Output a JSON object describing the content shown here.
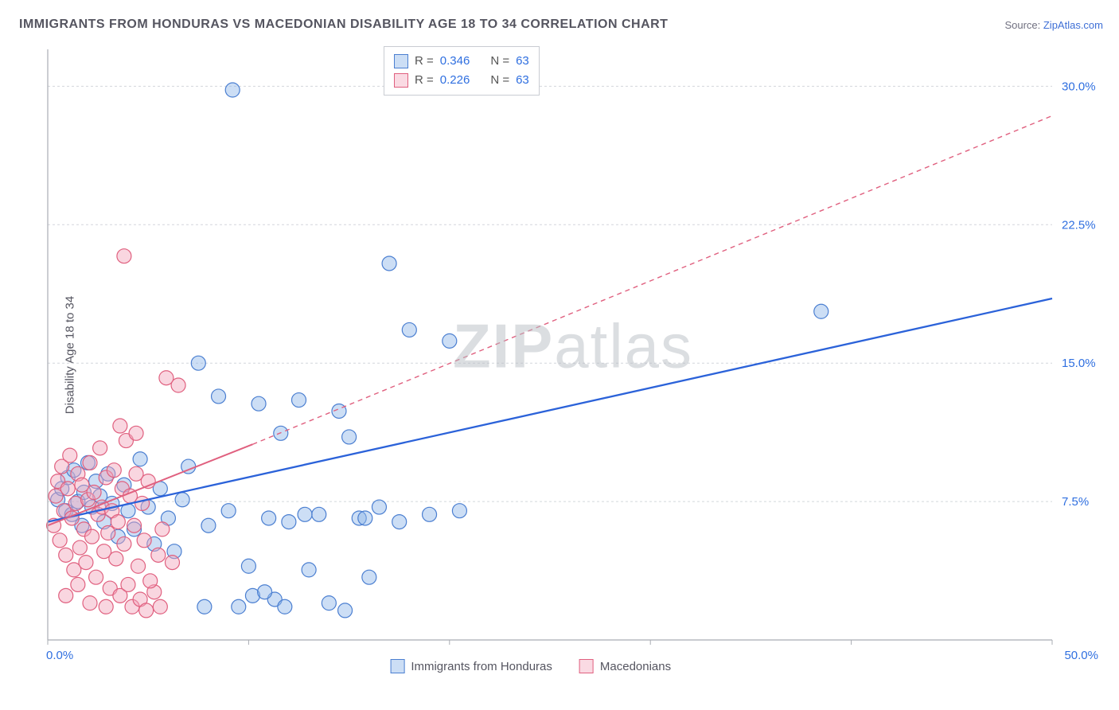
{
  "title": "IMMIGRANTS FROM HONDURAS VS MACEDONIAN DISABILITY AGE 18 TO 34 CORRELATION CHART",
  "source_prefix": "Source: ",
  "source_link": "ZipAtlas.com",
  "ylabel": "Disability Age 18 to 34",
  "watermark_bold": "ZIP",
  "watermark_rest": "atlas",
  "chart": {
    "type": "scatter",
    "background_color": "#ffffff",
    "grid_color": "#d3d6db",
    "axis_color": "#a9acb3",
    "tick_color": "#2f6fe0",
    "tick_fontsize": 15,
    "xlim": [
      0,
      50
    ],
    "ylim": [
      0,
      32
    ],
    "xticks": [
      0,
      50
    ],
    "xtick_labels": [
      "0.0%",
      "50.0%"
    ],
    "yticks": [
      7.5,
      15.0,
      22.5,
      30.0
    ],
    "ytick_labels": [
      "7.5%",
      "15.0%",
      "22.5%",
      "30.0%"
    ],
    "x_minor_tick_step": 10,
    "marker_radius": 9,
    "marker_opacity": 0.45,
    "series": [
      {
        "name": "Immigrants from Honduras",
        "color_fill": "#8eb6e8",
        "color_stroke": "#4b7fd1",
        "R": 0.346,
        "N": 63,
        "trend": {
          "x1": 0,
          "y1": 6.4,
          "x2": 50,
          "y2": 18.5,
          "dashed_from_x": 50,
          "stroke": "#2b62d9",
          "width": 2.3
        },
        "points": [
          [
            0.5,
            7.6
          ],
          [
            0.7,
            8.2
          ],
          [
            0.9,
            7.0
          ],
          [
            1.0,
            8.8
          ],
          [
            1.2,
            6.8
          ],
          [
            1.3,
            9.2
          ],
          [
            1.5,
            7.5
          ],
          [
            1.7,
            6.2
          ],
          [
            1.8,
            8.0
          ],
          [
            2.0,
            9.6
          ],
          [
            2.2,
            7.2
          ],
          [
            2.4,
            8.6
          ],
          [
            2.6,
            7.8
          ],
          [
            2.8,
            6.4
          ],
          [
            3.0,
            9.0
          ],
          [
            3.2,
            7.4
          ],
          [
            3.5,
            5.6
          ],
          [
            3.8,
            8.4
          ],
          [
            4.0,
            7.0
          ],
          [
            4.3,
            6.0
          ],
          [
            4.6,
            9.8
          ],
          [
            5.0,
            7.2
          ],
          [
            5.3,
            5.2
          ],
          [
            5.6,
            8.2
          ],
          [
            6.0,
            6.6
          ],
          [
            6.3,
            4.8
          ],
          [
            6.7,
            7.6
          ],
          [
            7.0,
            9.4
          ],
          [
            7.5,
            15.0
          ],
          [
            8.0,
            6.2
          ],
          [
            8.5,
            13.2
          ],
          [
            9.0,
            7.0
          ],
          [
            9.2,
            29.8
          ],
          [
            9.5,
            1.8
          ],
          [
            10.0,
            4.0
          ],
          [
            10.2,
            2.4
          ],
          [
            10.5,
            12.8
          ],
          [
            11.0,
            6.6
          ],
          [
            11.3,
            2.2
          ],
          [
            11.6,
            11.2
          ],
          [
            12.0,
            6.4
          ],
          [
            12.5,
            13.0
          ],
          [
            13.0,
            3.8
          ],
          [
            13.5,
            6.8
          ],
          [
            14.0,
            2.0
          ],
          [
            14.5,
            12.4
          ],
          [
            15.0,
            11.0
          ],
          [
            15.5,
            6.6
          ],
          [
            16.0,
            3.4
          ],
          [
            16.5,
            7.2
          ],
          [
            17.0,
            20.4
          ],
          [
            17.5,
            6.4
          ],
          [
            18.0,
            16.8
          ],
          [
            14.8,
            1.6
          ],
          [
            19.0,
            6.8
          ],
          [
            20.0,
            16.2
          ],
          [
            20.5,
            7.0
          ],
          [
            38.5,
            17.8
          ],
          [
            10.8,
            2.6
          ],
          [
            7.8,
            1.8
          ],
          [
            11.8,
            1.8
          ],
          [
            12.8,
            6.8
          ],
          [
            15.8,
            6.6
          ]
        ]
      },
      {
        "name": "Macedonians",
        "color_fill": "#f2a5ba",
        "color_stroke": "#e0607f",
        "R": 0.226,
        "N": 63,
        "trend": {
          "x1": 0,
          "y1": 6.2,
          "x2": 10.2,
          "y2": 10.6,
          "dashed_to": [
            50,
            28.4
          ],
          "stroke": "#e0607f",
          "width": 2.0
        },
        "points": [
          [
            0.3,
            6.2
          ],
          [
            0.4,
            7.8
          ],
          [
            0.5,
            8.6
          ],
          [
            0.6,
            5.4
          ],
          [
            0.7,
            9.4
          ],
          [
            0.8,
            7.0
          ],
          [
            0.9,
            4.6
          ],
          [
            1.0,
            8.2
          ],
          [
            1.1,
            10.0
          ],
          [
            1.2,
            6.6
          ],
          [
            1.3,
            3.8
          ],
          [
            1.4,
            7.4
          ],
          [
            1.5,
            9.0
          ],
          [
            1.6,
            5.0
          ],
          [
            1.7,
            8.4
          ],
          [
            1.8,
            6.0
          ],
          [
            1.9,
            4.2
          ],
          [
            2.0,
            7.6
          ],
          [
            2.1,
            9.6
          ],
          [
            2.2,
            5.6
          ],
          [
            2.3,
            8.0
          ],
          [
            2.4,
            3.4
          ],
          [
            2.5,
            6.8
          ],
          [
            2.6,
            10.4
          ],
          [
            2.7,
            7.2
          ],
          [
            2.8,
            4.8
          ],
          [
            2.9,
            8.8
          ],
          [
            3.0,
            5.8
          ],
          [
            3.1,
            2.8
          ],
          [
            3.2,
            7.0
          ],
          [
            3.3,
            9.2
          ],
          [
            3.4,
            4.4
          ],
          [
            3.5,
            6.4
          ],
          [
            3.6,
            2.4
          ],
          [
            3.7,
            8.2
          ],
          [
            3.8,
            5.2
          ],
          [
            3.9,
            10.8
          ],
          [
            4.0,
            3.0
          ],
          [
            4.1,
            7.8
          ],
          [
            4.2,
            1.8
          ],
          [
            4.3,
            6.2
          ],
          [
            4.4,
            9.0
          ],
          [
            4.5,
            4.0
          ],
          [
            4.6,
            2.2
          ],
          [
            4.7,
            7.4
          ],
          [
            4.8,
            5.4
          ],
          [
            4.9,
            1.6
          ],
          [
            5.0,
            8.6
          ],
          [
            3.8,
            20.8
          ],
          [
            5.3,
            2.6
          ],
          [
            5.5,
            4.6
          ],
          [
            5.7,
            6.0
          ],
          [
            5.9,
            14.2
          ],
          [
            6.2,
            4.2
          ],
          [
            6.5,
            13.8
          ],
          [
            4.4,
            11.2
          ],
          [
            3.6,
            11.6
          ],
          [
            2.1,
            2.0
          ],
          [
            2.9,
            1.8
          ],
          [
            1.5,
            3.0
          ],
          [
            0.9,
            2.4
          ],
          [
            5.1,
            3.2
          ],
          [
            5.6,
            1.8
          ]
        ]
      }
    ]
  },
  "legend_top": {
    "rows": [
      {
        "swatch": "blue",
        "r_label": "R =",
        "r_val": "0.346",
        "n_label": "N =",
        "n_val": "63"
      },
      {
        "swatch": "pink",
        "r_label": "R =",
        "r_val": "0.226",
        "n_label": "N =",
        "n_val": "63"
      }
    ]
  },
  "legend_bottom": {
    "items": [
      {
        "swatch": "blue",
        "label": "Immigrants from Honduras"
      },
      {
        "swatch": "pink",
        "label": "Macedonians"
      }
    ]
  }
}
